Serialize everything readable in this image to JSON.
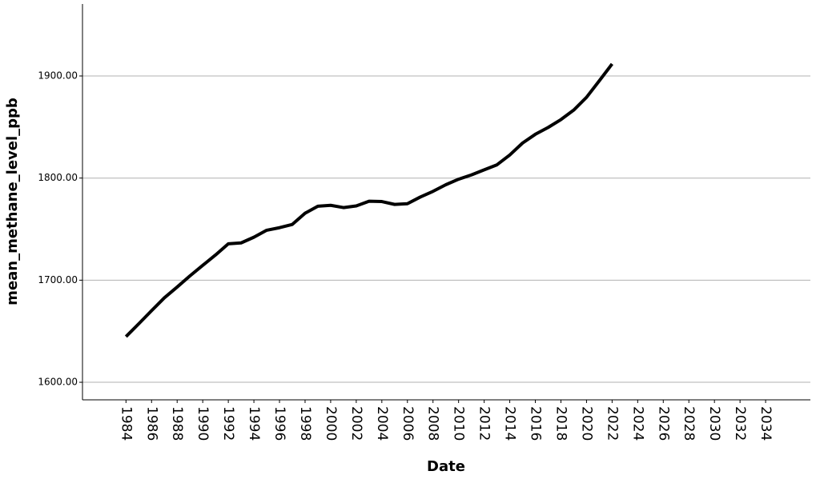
{
  "chart_data": {
    "type": "line",
    "x_label": "Date",
    "y_label": "mean_methane_level_ppb",
    "x": [
      1984,
      1985,
      1986,
      1987,
      1988,
      1989,
      1990,
      1991,
      1992,
      1993,
      1994,
      1995,
      1996,
      1997,
      1998,
      1999,
      2000,
      2001,
      2002,
      2003,
      2004,
      2005,
      2006,
      2007,
      2008,
      2009,
      2010,
      2011,
      2012,
      2013,
      2014,
      2015,
      2016,
      2017,
      2018,
      2019,
      2020,
      2021,
      2022
    ],
    "values": [
      1644.7,
      1657.3,
      1670.1,
      1682.7,
      1693.3,
      1704.2,
      1714.5,
      1724.7,
      1735.6,
      1736.5,
      1742.1,
      1748.9,
      1751.4,
      1754.6,
      1765.6,
      1772.4,
      1773.3,
      1771.1,
      1772.7,
      1777.3,
      1777.0,
      1774.2,
      1774.9,
      1781.4,
      1787.0,
      1793.5,
      1798.9,
      1803.1,
      1808.1,
      1813.0,
      1822.6,
      1834.3,
      1842.9,
      1849.6,
      1857.3,
      1866.6,
      1879.1,
      1895.3,
      1911.8
    ],
    "color": "#000000",
    "xlim": [
      1980.6,
      2037.5
    ],
    "xticks": [
      1984,
      1986,
      1988,
      1990,
      1992,
      1994,
      1996,
      1998,
      2000,
      2002,
      2004,
      2006,
      2008,
      2010,
      2012,
      2014,
      2016,
      2018,
      2020,
      2022,
      2024,
      2026,
      2028,
      2030,
      2032,
      2034
    ],
    "ylim": [
      1582.8,
      1970.5
    ],
    "yticks": [
      {
        "value": 1600,
        "label": "1600.00"
      },
      {
        "value": 1700,
        "label": "1700.00"
      },
      {
        "value": 1800,
        "label": "1800.00"
      },
      {
        "value": 1900,
        "label": "1900.00"
      }
    ],
    "grid": true
  }
}
